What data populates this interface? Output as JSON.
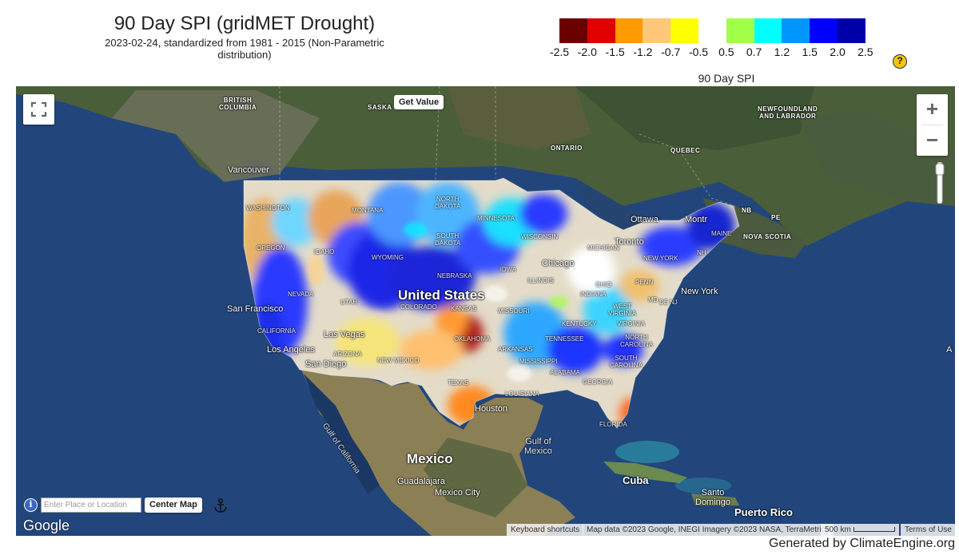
{
  "header": {
    "title": "90 Day SPI (gridMET Drought)",
    "subtitle": "2023-02-24, standardized from 1981 - 2015 (Non-Parametric distribution)"
  },
  "legend": {
    "title": "90 Day SPI",
    "ticks": [
      "-2.5",
      "-2.0",
      "-1.5",
      "-1.2",
      "-0.7",
      "-0.5",
      "0.5",
      "0.7",
      "1.2",
      "1.5",
      "2.0",
      "2.5"
    ],
    "colors": [
      "#6b0000",
      "#e00000",
      "#ff9a00",
      "#ffc878",
      "#ffff00",
      "#ffffff",
      "#a0ff46",
      "#00ffff",
      "#0096ff",
      "#0000ff",
      "#0000aa"
    ],
    "help_icon": "question-mark-icon",
    "help_symbol": "?"
  },
  "map": {
    "get_value_label": "Get Value",
    "fullscreen_icon": "fullscreen-icon",
    "zoom_in_symbol": "+",
    "zoom_out_symbol": "−",
    "search": {
      "placeholder": "Enter Place or Location",
      "value": "",
      "button_label": "Center Map",
      "info_symbol": "i",
      "anchor_icon": "anchor-icon"
    },
    "labels": {
      "british_columbia": "BRITISH\nCOLUMBIA",
      "saskatchewan": "SASKA",
      "ontario": "ONTARIO",
      "quebec": "QUEBEC",
      "newfoundland": "NEWFOUNDLAND\nAND LABRADOR",
      "vancouver": "Vancouver",
      "ottawa": "Ottawa",
      "montreal": "Montr",
      "nb": "NB",
      "pe": "PE",
      "nova_scotia": "NOVA SCOTIA",
      "toronto": "Toronto",
      "chicago": "Chicago",
      "new_york": "New York",
      "united_states": "United States",
      "san_francisco": "San Francisco",
      "las_vegas": "Las Vegas",
      "los_angeles": "Los Angeles",
      "san_diego": "San Diego",
      "houston": "Houston",
      "gulf_of_california": "Gulf of California",
      "gulf_of_mexico": "Gulf of\nMexico",
      "mexico": "Mexico",
      "guadalajara": "Guadalajara",
      "mexico_city": "Mexico City",
      "cuba": "Cuba",
      "santo_domingo": "Santo\nDomingo",
      "puerto_rico": "Puerto Rico",
      "washington": "WASHINGTON",
      "montana": "MONTANA",
      "north_dakota": "NORTH\nDAKOTA",
      "minnesota": "MINNESOTA",
      "oregon": "OREGON",
      "idaho": "IDAHO",
      "wyoming": "WYOMING",
      "south_dakota": "SOUTH\nDAKOTA",
      "wisconsin": "WISCONSIN",
      "michigan": "MICHIGAN",
      "iowa": "IOWA",
      "nebraska": "NEBRASKA",
      "nevada": "NEVADA",
      "utah": "UTAH",
      "colorado": "COLORADO",
      "kansas": "KANSAS",
      "illinois": "ILLINOIS",
      "indiana": "INDIANA",
      "ohio": "OHIO",
      "penn": "PENN",
      "missouri": "MISSOURI",
      "california": "CALIFORNIA",
      "arizona": "ARIZONA",
      "new_mexico": "NEW MEXICO",
      "oklahoma": "OKLAHOMA",
      "arkansas": "ARKANSAS",
      "kentucky": "KENTUCKY",
      "tennessee": "TENNESSEE",
      "west_virginia": "WEST\nVIRGINIA",
      "virginia": "VIRGINIA",
      "north_carolina": "NORTH\nCAROLINA",
      "south_carolina": "SOUTH\nCAROLINA",
      "mississippi": "MISSISSIPPI",
      "alabama": "ALABAMA",
      "georgia": "GEORGIA",
      "texas": "TEXAS",
      "louisiana": "LOUISIANA",
      "florida": "FLORIDA",
      "md": "MD",
      "de": "DE",
      "nj": "NJ",
      "maine": "MAINE",
      "new_york_state": "NEW YORK",
      "nh": "NH",
      "a_edge": "A"
    },
    "google_logo": "Google",
    "attribution": {
      "keyboard": "Keyboard shortcuts",
      "data": "Map data ©2023 Google, INEGI Imagery ©2023 NASA, TerraMetrics",
      "scale": "500 km",
      "terms": "Terms of Use"
    }
  },
  "footer": {
    "generated_by": "Generated by ClimateEngine.org"
  }
}
